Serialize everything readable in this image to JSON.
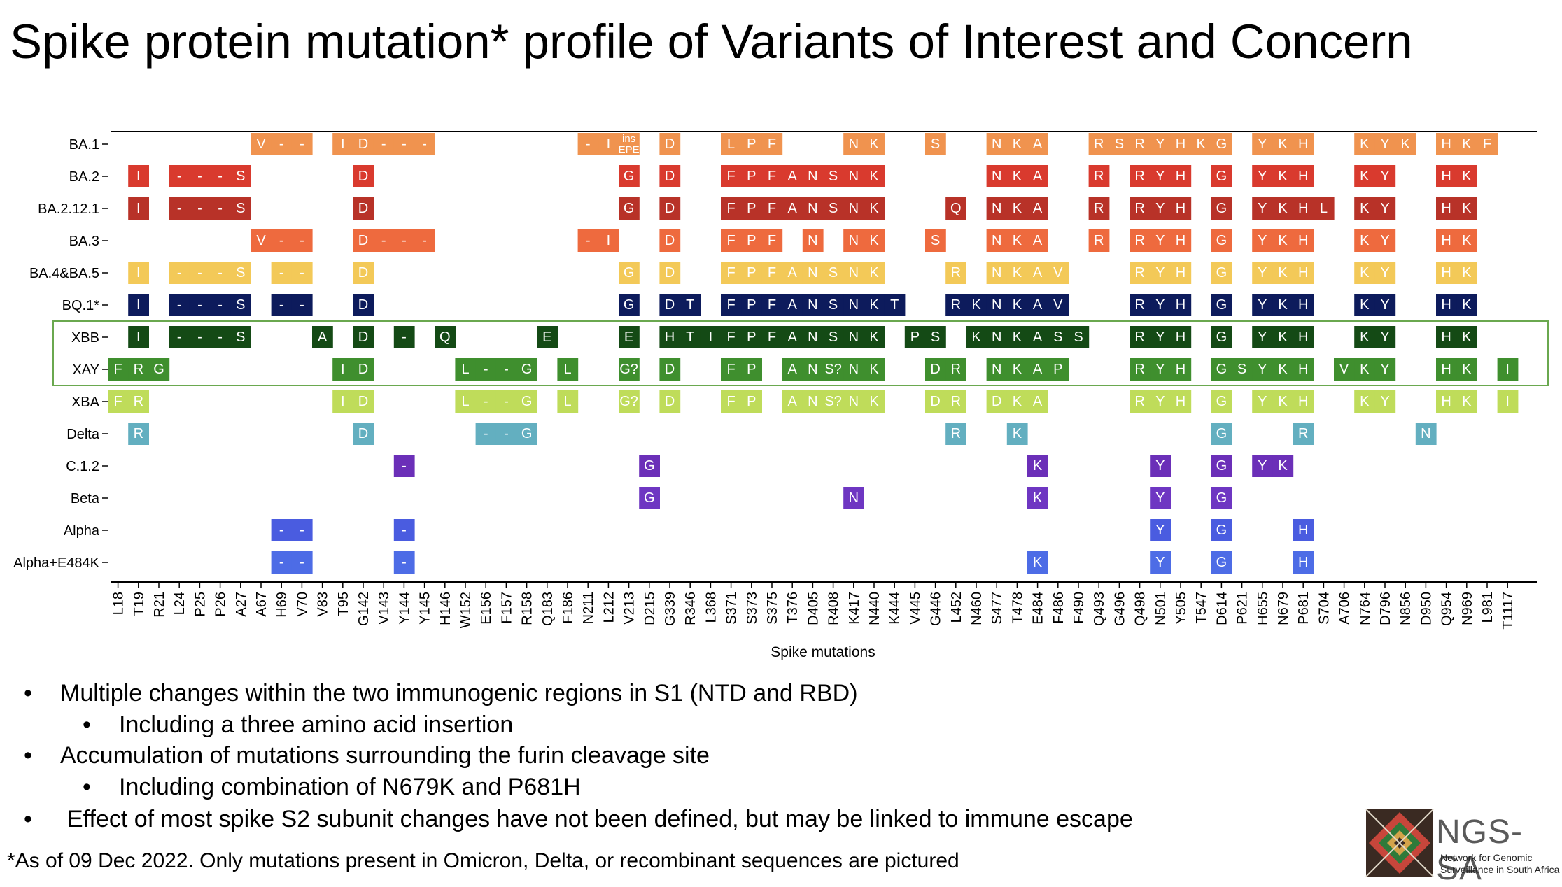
{
  "title": "Spike protein mutation* profile of Variants of Interest and Concern",
  "chart_data": {
    "type": "heatmap",
    "xlabel": "Spike mutations",
    "positions": [
      "L18",
      "T19",
      "R21",
      "L24",
      "P25",
      "P26",
      "A27",
      "A67",
      "H69",
      "V70",
      "V83",
      "T95",
      "G142",
      "V143",
      "Y144",
      "Y145",
      "H146",
      "W152",
      "E156",
      "F157",
      "R158",
      "Q183",
      "F186",
      "N211",
      "L212",
      "V213",
      "D215",
      "G339",
      "R346",
      "L368",
      "S371",
      "S373",
      "S375",
      "T376",
      "D405",
      "R408",
      "K417",
      "N440",
      "K444",
      "V445",
      "G446",
      "L452",
      "N460",
      "S477",
      "T478",
      "E484",
      "F486",
      "F490",
      "Q493",
      "G496",
      "Q498",
      "N501",
      "Y505",
      "T547",
      "D614",
      "P621",
      "H655",
      "N679",
      "P681",
      "S704",
      "A706",
      "N764",
      "D796",
      "N856",
      "D950",
      "Q954",
      "N969",
      "L981",
      "T1117"
    ],
    "variants": [
      "BA.1",
      "BA.2",
      "BA.2.12.1",
      "BA.3",
      "BA.4&BA.5",
      "BQ.1*",
      "XBB",
      "XAY",
      "XBA",
      "Delta",
      "C.1.2",
      "Beta",
      "Alpha",
      "Alpha+E484K"
    ],
    "variant_colors": {
      "BA.1": "#F0934F",
      "BA.2": "#D93A2E",
      "BA.2.12.1": "#B83228",
      "BA.3": "#EE6A3E",
      "BA.4&BA.5": "#F3C958",
      "BQ.1*": "#0D1B5C",
      "XBB": "#144A15",
      "XAY": "#3F8F2E",
      "XBA": "#BFDC5A",
      "Delta": "#63AFC0",
      "C.1.2": "#6B2FB8",
      "Beta": "#6E36C2",
      "Alpha": "#4A5CE0",
      "Alpha+E484K": "#4D6CE6"
    },
    "highlight_box_rows": [
      "XBB",
      "XAY"
    ],
    "mutations": {
      "BA.1": {
        "A67": "V",
        "H69": "-",
        "V70": "-",
        "T95": "I",
        "G142": "D",
        "V143": "-",
        "Y144": "-",
        "Y145": "-",
        "L212": "I",
        "N211": "-",
        "V213": "ins EPE",
        "G339": "D",
        "S371": "L",
        "S373": "P",
        "S375": "F",
        "K417": "N",
        "N440": "K",
        "G446": "S",
        "S477": "N",
        "T478": "K",
        "E484": "A",
        "Q493": "R",
        "G496": "S",
        "Q498": "R",
        "N501": "Y",
        "Y505": "H",
        "T547": "K",
        "D614": "G",
        "H655": "Y",
        "N679": "K",
        "P681": "H",
        "N764": "K",
        "D796": "Y",
        "N856": "K",
        "Q954": "H",
        "N969": "K",
        "L981": "F"
      },
      "BA.2": {
        "T19": "I",
        "L24": "-",
        "P25": "-",
        "P26": "-",
        "A27": "S",
        "G142": "D",
        "V213": "G",
        "G339": "D",
        "S371": "F",
        "S373": "P",
        "S375": "F",
        "T376": "A",
        "D405": "N",
        "R408": "S",
        "K417": "N",
        "N440": "K",
        "S477": "N",
        "T478": "K",
        "E484": "A",
        "Q493": "R",
        "Q498": "R",
        "N501": "Y",
        "Y505": "H",
        "D614": "G",
        "H655": "Y",
        "N679": "K",
        "P681": "H",
        "N764": "K",
        "D796": "Y",
        "Q954": "H",
        "N969": "K"
      },
      "BA.2.12.1": {
        "T19": "I",
        "L24": "-",
        "P25": "-",
        "P26": "-",
        "A27": "S",
        "G142": "D",
        "V213": "G",
        "G339": "D",
        "S371": "F",
        "S373": "P",
        "S375": "F",
        "T376": "A",
        "D405": "N",
        "R408": "S",
        "K417": "N",
        "N440": "K",
        "L452": "Q",
        "S477": "N",
        "T478": "K",
        "E484": "A",
        "Q493": "R",
        "Q498": "R",
        "N501": "Y",
        "Y505": "H",
        "D614": "G",
        "H655": "Y",
        "N679": "K",
        "P681": "H",
        "S704": "L",
        "N764": "K",
        "D796": "Y",
        "Q954": "H",
        "N969": "K"
      },
      "BA.3": {
        "A67": "V",
        "H69": "-",
        "V70": "-",
        "G142": "D",
        "V143": "-",
        "Y144": "-",
        "Y145": "-",
        "N211": "-",
        "L212": "I",
        "G339": "D",
        "S371": "F",
        "S373": "P",
        "S375": "F",
        "D405": "N",
        "K417": "N",
        "N440": "K",
        "G446": "S",
        "S477": "N",
        "T478": "K",
        "E484": "A",
        "Q493": "R",
        "Q498": "R",
        "N501": "Y",
        "Y505": "H",
        "D614": "G",
        "H655": "Y",
        "N679": "K",
        "P681": "H",
        "N764": "K",
        "D796": "Y",
        "Q954": "H",
        "N969": "K"
      },
      "BA.4&BA.5": {
        "T19": "I",
        "L24": "-",
        "P25": "-",
        "P26": "-",
        "A27": "S",
        "H69": "-",
        "V70": "-",
        "G142": "D",
        "V213": "G",
        "G339": "D",
        "S371": "F",
        "S373": "P",
        "S375": "F",
        "T376": "A",
        "D405": "N",
        "R408": "S",
        "K417": "N",
        "N440": "K",
        "L452": "R",
        "S477": "N",
        "T478": "K",
        "E484": "A",
        "F486": "V",
        "Q498": "R",
        "N501": "Y",
        "Y505": "H",
        "D614": "G",
        "H655": "Y",
        "N679": "K",
        "P681": "H",
        "N764": "K",
        "D796": "Y",
        "Q954": "H",
        "N969": "K"
      },
      "BQ.1*": {
        "T19": "I",
        "L24": "-",
        "P25": "-",
        "P26": "-",
        "A27": "S",
        "H69": "-",
        "V70": "-",
        "G142": "D",
        "V213": "G",
        "G339": "D",
        "R346": "T",
        "S371": "F",
        "S373": "P",
        "S375": "F",
        "T376": "A",
        "D405": "N",
        "R408": "S",
        "K417": "N",
        "N440": "K",
        "K444": "T",
        "L452": "R",
        "N460": "K",
        "S477": "N",
        "T478": "K",
        "E484": "A",
        "F486": "V",
        "Q498": "R",
        "N501": "Y",
        "Y505": "H",
        "D614": "G",
        "H655": "Y",
        "N679": "K",
        "P681": "H",
        "N764": "K",
        "D796": "Y",
        "Q954": "H",
        "N969": "K"
      },
      "XBB": {
        "T19": "I",
        "L24": "-",
        "P25": "-",
        "P26": "-",
        "A27": "S",
        "V83": "A",
        "G142": "D",
        "Y144": "-",
        "H146": "Q",
        "Q183": "E",
        "V213": "E",
        "G339": "H",
        "R346": "T",
        "L368": "I",
        "S371": "F",
        "S373": "P",
        "S375": "F",
        "T376": "A",
        "D405": "N",
        "R408": "S",
        "K417": "N",
        "N440": "K",
        "V445": "P",
        "G446": "S",
        "N460": "K",
        "S477": "N",
        "T478": "K",
        "E484": "A",
        "F486": "S",
        "F490": "S",
        "Q498": "R",
        "N501": "Y",
        "Y505": "H",
        "D614": "G",
        "H655": "Y",
        "N679": "K",
        "P681": "H",
        "N764": "K",
        "D796": "Y",
        "Q954": "H",
        "N969": "K"
      },
      "XAY": {
        "L18": "F",
        "T19": "R",
        "R21": "G",
        "T95": "I",
        "G142": "D",
        "W152": "L",
        "E156": "-",
        "F157": "-",
        "R158": "G",
        "F186": "L",
        "V213": "G?",
        "G339": "D",
        "S371": "F",
        "S373": "P",
        "T376": "A",
        "D405": "N",
        "R408": "S?",
        "K417": "N",
        "N440": "K",
        "G446": "D",
        "L452": "R",
        "S477": "N",
        "T478": "K",
        "E484": "A",
        "F486": "P",
        "Q498": "R",
        "N501": "Y",
        "Y505": "H",
        "D614": "G",
        "P621": "S",
        "H655": "Y",
        "N679": "K",
        "P681": "H",
        "A706": "V",
        "N764": "K",
        "D796": "Y",
        "Q954": "H",
        "N969": "K",
        "T1117": "I"
      },
      "XBA": {
        "L18": "F",
        "T19": "R",
        "T95": "I",
        "G142": "D",
        "W152": "L",
        "E156": "-",
        "F157": "-",
        "R158": "G",
        "F186": "L",
        "V213": "G?",
        "G339": "D",
        "S371": "F",
        "S373": "P",
        "T376": "A",
        "D405": "N",
        "R408": "S?",
        "K417": "N",
        "N440": "K",
        "G446": "D",
        "L452": "R",
        "S477": "D",
        "T478": "K",
        "E484": "A",
        "Q498": "R",
        "N501": "Y",
        "Y505": "H",
        "D614": "G",
        "H655": "Y",
        "N679": "K",
        "P681": "H",
        "N764": "K",
        "D796": "Y",
        "Q954": "H",
        "N969": "K",
        "T1117": "I"
      },
      "Delta": {
        "T19": "R",
        "G142": "D",
        "E156": "-",
        "F157": "-",
        "R158": "G",
        "L452": "R",
        "T478": "K",
        "D614": "G",
        "P681": "R",
        "D950": "N"
      },
      "C.1.2": {
        "Y144": "-",
        "D215": "G",
        "E484": "K",
        "N501": "Y",
        "D614": "G",
        "H655": "Y",
        "N679": "K"
      },
      "Beta": {
        "D215": "G",
        "K417": "N",
        "E484": "K",
        "N501": "Y",
        "D614": "G"
      },
      "Alpha": {
        "H69": "-",
        "V70": "-",
        "Y144": "-",
        "N501": "Y",
        "D614": "G",
        "P681": "H"
      },
      "Alpha+E484K": {
        "H69": "-",
        "V70": "-",
        "Y144": "-",
        "E484": "K",
        "N501": "Y",
        "D614": "G",
        "P681": "H"
      }
    }
  },
  "bullets": [
    {
      "level": 1,
      "marker": "•",
      "text": "Multiple changes within the two immunogenic regions in S1 (NTD and RBD)"
    },
    {
      "level": 2,
      "marker": "•",
      "text": "Including a three amino acid insertion"
    },
    {
      "level": 1,
      "marker": "•",
      "text": "Accumulation of mutations surrounding the furin cleavage site"
    },
    {
      "level": 2,
      "marker": "•",
      "text": "Including combination of N679K and P681H"
    },
    {
      "level": 1,
      "marker": "•",
      "text": "Effect of most spike S2 subunit changes have not been defined, but may be linked to immune escape"
    }
  ],
  "footnote": "*As of 09 Dec 2022. Only mutations present in Omicron, Delta, or recombinant sequences are pictured",
  "logo": {
    "name": "NGS-SA",
    "subtitle_line1": "Network for Genomic",
    "subtitle_line2": "Surveillance in South Africa",
    "icon": "ngs-sa-logo-icon"
  }
}
